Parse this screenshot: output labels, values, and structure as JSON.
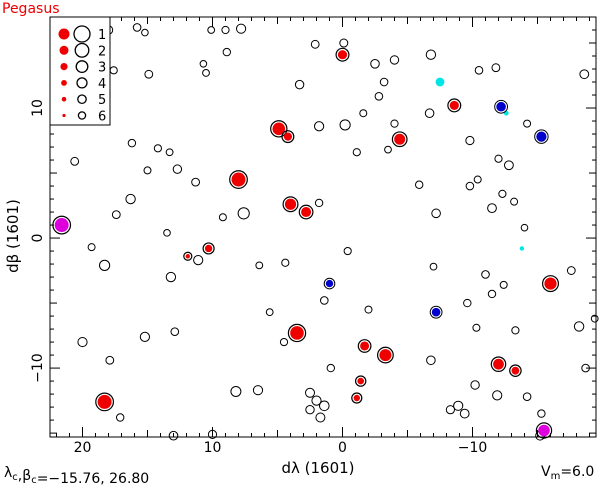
{
  "chart_data": {
    "type": "scatter",
    "title": "Pegasus",
    "xlabel": "dλ (1601)",
    "ylabel": "dβ (1601)",
    "xlim": [
      22.5,
      -19.5
    ],
    "ylim": [
      -15.3,
      17.0
    ],
    "xticks": [
      20,
      10,
      0,
      -10
    ],
    "yticks": [
      10,
      0,
      -10
    ],
    "grid": false,
    "center_text": "λc,βc=−15.76, 26.80",
    "center_label": {
      "lambda": "λ",
      "lambda_sub": "c",
      "sep": ",",
      "beta": "β",
      "beta_sub": "c",
      "values": "=−15.76, 26.80"
    },
    "vmag_label": {
      "main": "V",
      "sub": "m",
      "value": "=6.0"
    },
    "legend": {
      "placement": "top-left",
      "entries": [
        {
          "label": "1",
          "mag": 1
        },
        {
          "label": "2",
          "mag": 2
        },
        {
          "label": "3",
          "mag": 3
        },
        {
          "label": "4",
          "mag": 4
        },
        {
          "label": "5",
          "mag": 5
        },
        {
          "label": "6",
          "mag": 6
        }
      ]
    },
    "colors": {
      "bright": "#ee0000",
      "cyan": "#00e5e5",
      "blue": "#0000cc",
      "magenta": "#dd00dd",
      "outline": "#000000"
    },
    "series": [
      {
        "kind": "ring",
        "points": [
          [
            18.0,
            16.0
          ],
          [
            15.8,
            16.2
          ],
          [
            15.2,
            15.8
          ],
          [
            10.1,
            16.0
          ],
          [
            9.0,
            16.0
          ],
          [
            7.8,
            16.1
          ],
          [
            2.1,
            14.9
          ],
          [
            -2.5,
            13.4
          ],
          [
            -3.2,
            12.0
          ],
          [
            -4.0,
            13.7
          ],
          [
            -6.8,
            14.1
          ],
          [
            -10.5,
            12.9
          ],
          [
            -11.8,
            13.1
          ],
          [
            -18.6,
            12.6
          ],
          [
            17.6,
            12.9
          ],
          [
            14.9,
            12.6
          ],
          [
            10.7,
            13.4
          ],
          [
            10.5,
            12.7
          ],
          [
            8.9,
            14.3
          ],
          [
            3.3,
            11.8
          ],
          [
            1.8,
            8.6
          ],
          [
            -0.2,
            8.7
          ],
          [
            -1.6,
            9.6
          ],
          [
            -2.8,
            10.9
          ],
          [
            -4.0,
            8.8
          ],
          [
            -6.7,
            9.6
          ],
          [
            -9.8,
            7.5
          ],
          [
            -12.0,
            6.1
          ],
          [
            -12.8,
            5.6
          ],
          [
            -14.2,
            8.8
          ],
          [
            20.6,
            5.9
          ],
          [
            16.2,
            7.3
          ],
          [
            14.2,
            6.9
          ],
          [
            13.3,
            6.6
          ],
          [
            12.7,
            5.3
          ],
          [
            15.0,
            5.2
          ],
          [
            11.3,
            4.3
          ],
          [
            -1.1,
            6.6
          ],
          [
            -3.5,
            6.8
          ],
          [
            -5.9,
            4.1
          ],
          [
            -7.2,
            1.9
          ],
          [
            -9.8,
            4.0
          ],
          [
            -10.4,
            4.5
          ],
          [
            -11.5,
            2.3
          ],
          [
            -12.3,
            3.4
          ],
          [
            -13.2,
            2.8
          ],
          [
            -14.0,
            0.8
          ],
          [
            19.3,
            -0.7
          ],
          [
            16.3,
            3.0
          ],
          [
            17.4,
            1.8
          ],
          [
            13.5,
            0.4
          ],
          [
            11.1,
            -1.7
          ],
          [
            9.2,
            1.6
          ],
          [
            7.6,
            1.9
          ],
          [
            6.4,
            -2.1
          ],
          [
            4.4,
            -1.9
          ],
          [
            1.8,
            2.7
          ],
          [
            -0.4,
            -1.0
          ],
          [
            -7.0,
            -2.2
          ],
          [
            -11.0,
            -2.8
          ],
          [
            -11.5,
            -4.3
          ],
          [
            -12.4,
            -3.6
          ],
          [
            -17.6,
            -2.5
          ],
          [
            20.0,
            -8.0
          ],
          [
            18.3,
            -2.1
          ],
          [
            13.2,
            -3.0
          ],
          [
            12.9,
            -7.2
          ],
          [
            15.2,
            -7.6
          ],
          [
            17.9,
            -9.4
          ],
          [
            5.6,
            -5.7
          ],
          [
            4.5,
            -8.0
          ],
          [
            1.4,
            -4.8
          ],
          [
            -2.0,
            -5.5
          ],
          [
            -9.6,
            -5.0
          ],
          [
            -10.3,
            -6.9
          ],
          [
            -13.3,
            -7.1
          ],
          [
            -18.2,
            -6.8
          ],
          [
            -18.7,
            -10.0
          ],
          [
            -19.4,
            -6.2
          ],
          [
            17.1,
            -13.8
          ],
          [
            13.0,
            -15.2
          ],
          [
            10.0,
            -15.1
          ],
          [
            8.2,
            -11.8
          ],
          [
            6.5,
            -11.7
          ],
          [
            2.5,
            -11.9
          ],
          [
            2.0,
            -12.5
          ],
          [
            2.5,
            -13.2
          ],
          [
            1.4,
            -12.9
          ],
          [
            1.7,
            -13.8
          ],
          [
            0.9,
            -10.0
          ],
          [
            -6.8,
            -9.4
          ],
          [
            -8.3,
            -13.2
          ],
          [
            -8.9,
            -12.9
          ],
          [
            -9.4,
            -13.5
          ],
          [
            -10.2,
            -11.3
          ],
          [
            -11.9,
            -12.1
          ],
          [
            -14.2,
            -12.2
          ],
          [
            -15.3,
            -13.5
          ],
          [
            -15.2,
            -15.2
          ],
          [
            -0.1,
            15.0
          ]
        ]
      },
      {
        "kind": "red",
        "points": [
          [
            0.0,
            14.1
          ],
          [
            -8.6,
            10.2
          ],
          [
            4.9,
            8.4
          ],
          [
            4.2,
            7.8
          ],
          [
            -4.4,
            7.6
          ],
          [
            8.0,
            4.5
          ],
          [
            4.0,
            2.6
          ],
          [
            2.8,
            2.0
          ],
          [
            10.3,
            -0.8
          ],
          [
            11.9,
            -1.4
          ],
          [
            -16.0,
            -3.5
          ],
          [
            3.5,
            -7.3
          ],
          [
            -3.3,
            -9.0
          ],
          [
            -12.0,
            -9.7
          ],
          [
            -13.3,
            -10.2
          ],
          [
            18.3,
            -12.6
          ],
          [
            -1.7,
            -8.3
          ],
          [
            -1.4,
            -11.0
          ],
          [
            -1.1,
            -12.3
          ]
        ]
      },
      {
        "kind": "cyan",
        "points": [
          [
            -7.5,
            12.0
          ],
          [
            -12.6,
            9.6
          ],
          [
            -13.8,
            -0.8
          ]
        ]
      },
      {
        "kind": "blue",
        "points": [
          [
            -12.2,
            10.1
          ],
          [
            -15.3,
            7.8
          ],
          [
            1.0,
            -3.5
          ],
          [
            -7.2,
            -5.7
          ]
        ]
      },
      {
        "kind": "magenta",
        "points": [
          [
            21.6,
            1.0
          ],
          [
            -15.5,
            -14.8
          ]
        ]
      }
    ],
    "sizes": {
      "ring": [
        4.2,
        3.8,
        3.3,
        3.4,
        3.6,
        4.6,
        3.9,
        4.3,
        3.8,
        4.2,
        4.7,
        3.8,
        3.9,
        4.4,
        3.6,
        3.9,
        3.3,
        3.4,
        3.7,
        4.2,
        4.6,
        5.1,
        3.5,
        3.8,
        3.6,
        4.3,
        4.1,
        3.6,
        4.4,
        3.5,
        3.9,
        3.7,
        3.6,
        3.4,
        4.2,
        3.5,
        3.9,
        3.6,
        3.4,
        3.7,
        4.3,
        3.8,
        3.5,
        4.4,
        3.6,
        3.5,
        3.3,
        3.5,
        4.7,
        3.9,
        3.3,
        4.6,
        3.5,
        5.6,
        3.4,
        3.6,
        3.7,
        3.6,
        3.4,
        3.8,
        3.7,
        3.5,
        3.9,
        4.6,
        5.1,
        4.7,
        3.8,
        4.6,
        3.9,
        3.4,
        3.6,
        3.8,
        3.5,
        3.7,
        3.5,
        3.6,
        4.7,
        3.8,
        3.4,
        3.7,
        4.3,
        4.1,
        5.0,
        4.6,
        4.5,
        4.6,
        4.2,
        4.8,
        4.5,
        3.7,
        4.3,
        4.1,
        4.6,
        4.4,
        4.2,
        4.6,
        3.8,
        3.7,
        4.4,
        4.0
      ],
      "red": [
        4.6,
        4.6,
        6.3,
        4.1,
        5.5,
        7.0,
        5.6,
        5.0,
        3.7,
        2.2,
        6.1,
        6.8,
        6.0,
        5.4,
        3.9,
        7.0,
        4.5,
        3.3,
        3.2
      ],
      "cyan": [
        4.4,
        2.4,
        2.2
      ],
      "blue": [
        4.8,
        5.1,
        3.7,
        4.3
      ],
      "magenta": [
        7.0,
        5.8
      ]
    }
  }
}
